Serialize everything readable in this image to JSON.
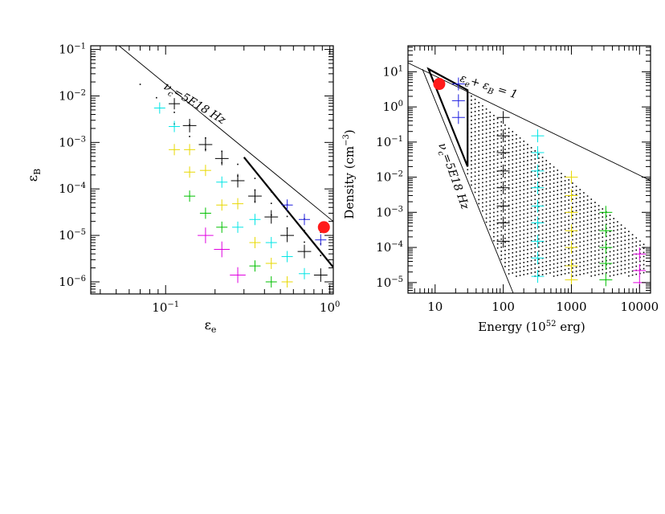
{
  "chart_data": [
    {
      "type": "scatter",
      "scale": "log-log",
      "xlabel": "ε_e",
      "ylabel": "ε_B",
      "xlim": [
        0.035,
        1.05
      ],
      "ylim": [
        5.5e-07,
        0.12
      ],
      "x_ticks": [
        {
          "v": 0.1,
          "label": "10^-1"
        },
        {
          "v": 1,
          "label": "10^0"
        }
      ],
      "y_ticks": [
        {
          "v": 1e-06,
          "label": "10^-6"
        },
        {
          "v": 1e-05,
          "label": "10^-5"
        },
        {
          "v": 0.0001,
          "label": "10^-4"
        },
        {
          "v": 0.001,
          "label": "10^-3"
        },
        {
          "v": 0.01,
          "label": "10^-2"
        },
        {
          "v": 0.1,
          "label": "10^-1"
        }
      ],
      "grid": false,
      "line_label": "ν_c=5E18 Hz",
      "reference_line": [
        [
          0.052,
          0.12
        ],
        [
          1.05,
          2e-05
        ]
      ],
      "region_polygon": [
        [
          0.3,
          0.00048
        ],
        [
          1.05,
          2e-05
        ],
        [
          1.05,
          1.5e-05
        ],
        [
          0.93,
          1.5e-05
        ]
      ],
      "best_fit": {
        "x": 0.92,
        "y": 1.5e-05
      },
      "crosses": [
        {
          "x": 0.092,
          "y": 0.0055,
          "color": "cyan",
          "size": 1
        },
        {
          "x": 0.113,
          "y": 0.0068,
          "color": "black",
          "size": 1
        },
        {
          "x": 0.113,
          "y": 0.0022,
          "color": "cyan",
          "size": 1
        },
        {
          "x": 0.113,
          "y": 0.0007,
          "color": "yellow",
          "size": 1
        },
        {
          "x": 0.14,
          "y": 0.0023,
          "color": "black",
          "size": 1.2
        },
        {
          "x": 0.14,
          "y": 0.0007,
          "color": "yellow",
          "size": 1
        },
        {
          "x": 0.14,
          "y": 0.00023,
          "color": "yellow",
          "size": 1
        },
        {
          "x": 0.14,
          "y": 7e-05,
          "color": "green",
          "size": 1
        },
        {
          "x": 0.175,
          "y": 0.0009,
          "color": "black",
          "size": 1.2
        },
        {
          "x": 0.175,
          "y": 0.00025,
          "color": "yellow",
          "size": 1
        },
        {
          "x": 0.175,
          "y": 3e-05,
          "color": "green",
          "size": 1
        },
        {
          "x": 0.175,
          "y": 1e-05,
          "color": "magenta",
          "size": 1.4
        },
        {
          "x": 0.22,
          "y": 0.00045,
          "color": "black",
          "size": 1.2
        },
        {
          "x": 0.22,
          "y": 0.00014,
          "color": "cyan",
          "size": 1
        },
        {
          "x": 0.22,
          "y": 4.5e-05,
          "color": "yellow",
          "size": 1
        },
        {
          "x": 0.22,
          "y": 1.5e-05,
          "color": "green",
          "size": 1
        },
        {
          "x": 0.22,
          "y": 5e-06,
          "color": "magenta",
          "size": 1.4
        },
        {
          "x": 0.275,
          "y": 0.00015,
          "color": "black",
          "size": 1.2
        },
        {
          "x": 0.275,
          "y": 4.8e-05,
          "color": "yellow",
          "size": 1
        },
        {
          "x": 0.275,
          "y": 1.5e-05,
          "color": "cyan",
          "size": 1
        },
        {
          "x": 0.275,
          "y": 1.4e-06,
          "color": "magenta",
          "size": 1.4
        },
        {
          "x": 0.35,
          "y": 7e-05,
          "color": "black",
          "size": 1.2
        },
        {
          "x": 0.35,
          "y": 2.2e-05,
          "color": "cyan",
          "size": 1
        },
        {
          "x": 0.35,
          "y": 7e-06,
          "color": "yellow",
          "size": 1
        },
        {
          "x": 0.35,
          "y": 2.2e-06,
          "color": "green",
          "size": 1
        },
        {
          "x": 0.44,
          "y": 2.5e-05,
          "color": "black",
          "size": 1.2
        },
        {
          "x": 0.44,
          "y": 7e-06,
          "color": "cyan",
          "size": 1
        },
        {
          "x": 0.44,
          "y": 2.5e-06,
          "color": "yellow",
          "size": 1
        },
        {
          "x": 0.44,
          "y": 1e-06,
          "color": "green",
          "size": 1
        },
        {
          "x": 0.55,
          "y": 4.5e-05,
          "color": "blue",
          "size": 1
        },
        {
          "x": 0.55,
          "y": 1e-05,
          "color": "black",
          "size": 1.2
        },
        {
          "x": 0.55,
          "y": 3.5e-06,
          "color": "cyan",
          "size": 1
        },
        {
          "x": 0.55,
          "y": 1e-06,
          "color": "yellow",
          "size": 1
        },
        {
          "x": 0.7,
          "y": 2.2e-05,
          "color": "blue",
          "size": 1
        },
        {
          "x": 0.7,
          "y": 4.5e-06,
          "color": "black",
          "size": 1.2
        },
        {
          "x": 0.7,
          "y": 1.5e-06,
          "color": "cyan",
          "size": 1
        },
        {
          "x": 0.88,
          "y": 8e-06,
          "color": "blue",
          "size": 1
        },
        {
          "x": 0.88,
          "y": 1.4e-06,
          "color": "black",
          "size": 1.2
        }
      ]
    },
    {
      "type": "scatter",
      "scale": "log-log",
      "xlabel": "Energy (10^52 erg)",
      "ylabel": "Density (cm^-3)",
      "xlim": [
        4,
        14500
      ],
      "ylim": [
        5e-06,
        55
      ],
      "x_ticks": [
        {
          "v": 10,
          "label": "10"
        },
        {
          "v": 100,
          "label": "100"
        },
        {
          "v": 1000,
          "label": "1000"
        },
        {
          "v": 10000,
          "label": "10000"
        }
      ],
      "y_ticks": [
        {
          "v": 1e-05,
          "label": "10^-5"
        },
        {
          "v": 0.0001,
          "label": "10^-4"
        },
        {
          "v": 0.001,
          "label": "10^-3"
        },
        {
          "v": 0.01,
          "label": "10^-2"
        },
        {
          "v": 0.1,
          "label": "10^-1"
        },
        {
          "v": 1,
          "label": "10^0"
        },
        {
          "v": 10,
          "label": "10^1"
        }
      ],
      "grid": false,
      "line_label_upper": "ε_e+ ε_B = 1",
      "line_label_lower": "ν_c=5E18 Hz",
      "line_upper": [
        [
          4,
          18
        ],
        [
          14500,
          0.008
        ]
      ],
      "line_lower": [
        [
          6.5,
          12
        ],
        [
          140,
          5e-06
        ]
      ],
      "region_polygon": [
        [
          8,
          12
        ],
        [
          30,
          3
        ],
        [
          30,
          0.02
        ]
      ],
      "best_fit": {
        "x": 11.5,
        "y": 4.5
      },
      "dot_region": {
        "x_range": [
          30,
          13000
        ],
        "y_top_at_x_min": 2.5,
        "y_top_at_x_max": 0.0001,
        "y_bottom": 1.5e-05
      },
      "crosses": [
        {
          "x": 22,
          "y": 4.5,
          "color": "blue"
        },
        {
          "x": 22,
          "y": 1.5,
          "color": "blue"
        },
        {
          "x": 22,
          "y": 0.5,
          "color": "blue"
        },
        {
          "x": 100,
          "y": 0.5,
          "color": "black"
        },
        {
          "x": 100,
          "y": 0.15,
          "color": "black"
        },
        {
          "x": 100,
          "y": 0.05,
          "color": "black"
        },
        {
          "x": 100,
          "y": 0.015,
          "color": "black"
        },
        {
          "x": 100,
          "y": 0.005,
          "color": "black"
        },
        {
          "x": 100,
          "y": 0.0015,
          "color": "black"
        },
        {
          "x": 100,
          "y": 0.0005,
          "color": "black"
        },
        {
          "x": 100,
          "y": 0.00015,
          "color": "black"
        },
        {
          "x": 320,
          "y": 0.15,
          "color": "cyan"
        },
        {
          "x": 320,
          "y": 0.05,
          "color": "cyan"
        },
        {
          "x": 320,
          "y": 0.015,
          "color": "cyan"
        },
        {
          "x": 320,
          "y": 0.005,
          "color": "cyan"
        },
        {
          "x": 320,
          "y": 0.0015,
          "color": "cyan"
        },
        {
          "x": 320,
          "y": 0.0005,
          "color": "cyan"
        },
        {
          "x": 320,
          "y": 0.00015,
          "color": "cyan"
        },
        {
          "x": 320,
          "y": 5e-05,
          "color": "cyan"
        },
        {
          "x": 320,
          "y": 1.5e-05,
          "color": "cyan"
        },
        {
          "x": 1000,
          "y": 0.01,
          "color": "yellow"
        },
        {
          "x": 1000,
          "y": 0.003,
          "color": "yellow"
        },
        {
          "x": 1000,
          "y": 0.001,
          "color": "yellow"
        },
        {
          "x": 1000,
          "y": 0.0003,
          "color": "yellow"
        },
        {
          "x": 1000,
          "y": 0.0001,
          "color": "yellow"
        },
        {
          "x": 1000,
          "y": 3e-05,
          "color": "yellow"
        },
        {
          "x": 1000,
          "y": 1.2e-05,
          "color": "yellow"
        },
        {
          "x": 3200,
          "y": 0.001,
          "color": "green"
        },
        {
          "x": 3200,
          "y": 0.0003,
          "color": "green"
        },
        {
          "x": 3200,
          "y": 0.0001,
          "color": "green"
        },
        {
          "x": 3200,
          "y": 3.5e-05,
          "color": "green"
        },
        {
          "x": 3200,
          "y": 1.2e-05,
          "color": "green"
        },
        {
          "x": 10000,
          "y": 6.5e-05,
          "color": "magenta"
        },
        {
          "x": 10000,
          "y": 2.2e-05,
          "color": "magenta"
        },
        {
          "x": 10000,
          "y": 1e-05,
          "color": "magenta"
        }
      ]
    }
  ],
  "colors": {
    "black": "#000000",
    "cyan": "#00e5e5",
    "yellow": "#e8d800",
    "green": "#00c000",
    "magenta": "#e000e0",
    "blue": "#2020e0",
    "red": "#ff1a1a"
  }
}
